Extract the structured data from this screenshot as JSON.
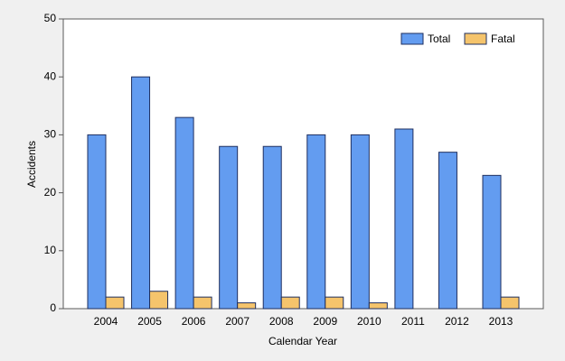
{
  "chart_data": {
    "type": "bar",
    "x_label": "Calendar Year",
    "y_label": "Accidents",
    "categories": [
      "2004",
      "2005",
      "2006",
      "2007",
      "2008",
      "2009",
      "2010",
      "2011",
      "2012",
      "2013"
    ],
    "series": [
      {
        "name": "Total",
        "color": "#639cf0",
        "values": [
          30,
          40,
          33,
          28,
          28,
          30,
          30,
          31,
          27,
          23
        ]
      },
      {
        "name": "Fatal",
        "color": "#f5c46c",
        "values": [
          2,
          3,
          2,
          1,
          2,
          2,
          1,
          0,
          0,
          2
        ]
      }
    ],
    "ylim": [
      0,
      50
    ],
    "yticks": [
      0,
      10,
      20,
      30,
      40,
      50
    ],
    "legend": "top-right"
  }
}
